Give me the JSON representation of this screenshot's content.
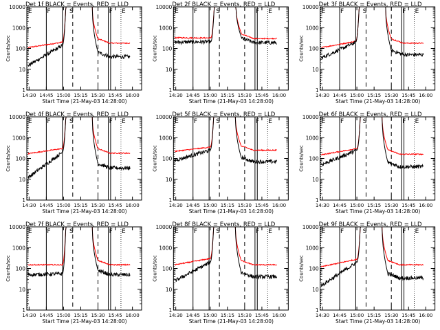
{
  "colors": {
    "events": "#000000",
    "lld": "#ff0000",
    "axes": "#000000",
    "background": "#ffffff"
  },
  "shared": {
    "xlabel": "Start Time (21-May-03 14:28:00)",
    "ylabel": "Counts/sec",
    "x_ticks": [
      "14:30",
      "14:45",
      "15:00",
      "15:15",
      "15:30",
      "15:45",
      "16:00"
    ],
    "x_tick_minutes": [
      2,
      17,
      32,
      47,
      62,
      77,
      92
    ],
    "x_range_minutes": [
      0,
      100
    ],
    "y_scale": "log",
    "y_ticks": [
      "1",
      "10",
      "100",
      "1000",
      "10000"
    ],
    "y_tick_values": [
      1,
      10,
      100,
      1000,
      10000
    ],
    "ylim": [
      1,
      10000
    ]
  },
  "chart_data": [
    {
      "type": "line",
      "title": "Det 1f BLACK = Events, RED = LLD",
      "ylabel": "Counts/sec",
      "xlabel": "Start Time (21-May-03 14:28:00)",
      "markers": [
        {
          "label": "E",
          "minute": 0.5
        },
        {
          "label": "F",
          "minute": 17
        },
        {
          "label": "S",
          "minute": 36.5
        },
        {
          "label": "F",
          "minute": 71
        },
        {
          "label": "E",
          "minute": 82
        }
      ],
      "lines_solid": [
        17,
        31,
        71,
        73
      ],
      "lines_dotted": [
        0.5,
        82
      ],
      "lines_dashed": [
        40,
        62
      ],
      "gap": [
        34,
        57
      ],
      "red": {
        "start": 110,
        "preEnd": 200,
        "peak": 10000,
        "post": 180
      },
      "black": {
        "start": 15,
        "preEnd": 140,
        "peak": 10000,
        "post": 40
      }
    },
    {
      "type": "line",
      "title": "Det 2f BLACK = Events, RED = LLD",
      "ylabel": "Counts/sec",
      "xlabel": "Start Time (21-May-03 14:28:00)",
      "markers": [
        {
          "label": "E",
          "minute": 0.5
        },
        {
          "label": "F",
          "minute": 17
        },
        {
          "label": "S",
          "minute": 36.5
        },
        {
          "label": "F",
          "minute": 71
        },
        {
          "label": "E",
          "minute": 82
        }
      ],
      "lines_solid": [
        17,
        31,
        71,
        73
      ],
      "lines_dotted": [
        0.5,
        82
      ],
      "lines_dashed": [
        40,
        62
      ],
      "gap": [
        35.5,
        54.5
      ],
      "red": {
        "start": 330,
        "preEnd": 320,
        "peak": 10000,
        "post": 300
      },
      "black": {
        "start": 200,
        "preEnd": 210,
        "peak": 10000,
        "post": 190
      }
    },
    {
      "type": "line",
      "title": "Det 3f BLACK = Events, RED = LLD",
      "ylabel": "Counts/sec",
      "xlabel": "Start Time (21-May-03 14:28:00)",
      "markers": [
        {
          "label": "E",
          "minute": 0.5
        },
        {
          "label": "F",
          "minute": 17
        },
        {
          "label": "S",
          "minute": 36.5
        },
        {
          "label": "F",
          "minute": 71
        },
        {
          "label": "E",
          "minute": 82
        }
      ],
      "lines_solid": [
        17,
        31,
        71,
        73
      ],
      "lines_dotted": [
        0.5,
        82
      ],
      "lines_dashed": [
        40,
        62
      ],
      "gap": [
        34,
        57
      ],
      "red": {
        "start": 110,
        "preEnd": 220,
        "peak": 10000,
        "post": 180
      },
      "black": {
        "start": 35,
        "preEnd": 200,
        "peak": 10000,
        "post": 50
      }
    },
    {
      "type": "line",
      "title": "Det 4f BLACK = Events, RED = LLD",
      "ylabel": "Counts/sec",
      "xlabel": "Start Time (21-May-03 14:28:00)",
      "markers": [
        {
          "label": "E",
          "minute": 0.5
        },
        {
          "label": "F",
          "minute": 17
        },
        {
          "label": "S",
          "minute": 36.5
        },
        {
          "label": "F",
          "minute": 71
        },
        {
          "label": "E",
          "minute": 82
        }
      ],
      "lines_solid": [
        17,
        31,
        71,
        73
      ],
      "lines_dotted": [
        0.5,
        82
      ],
      "lines_dashed": [
        40,
        62
      ],
      "gap": [
        34,
        57
      ],
      "red": {
        "start": 170,
        "preEnd": 300,
        "peak": 10000,
        "post": 180
      },
      "black": {
        "start": 12,
        "preEnd": 200,
        "peak": 10000,
        "post": 35
      }
    },
    {
      "type": "line",
      "title": "Det 5f BLACK = Events, RED = LLD",
      "ylabel": "Counts/sec",
      "xlabel": "Start Time (21-May-03 14:28:00)",
      "markers": [
        {
          "label": "E",
          "minute": 0.5
        },
        {
          "label": "F",
          "minute": 17
        },
        {
          "label": "S",
          "minute": 36.5
        },
        {
          "label": "F",
          "minute": 71
        },
        {
          "label": "E",
          "minute": 82
        }
      ],
      "lines_solid": [
        17,
        31,
        71,
        73
      ],
      "lines_dotted": [
        0.5,
        82
      ],
      "lines_dashed": [
        40,
        62
      ],
      "gap": [
        35,
        54
      ],
      "red": {
        "start": 220,
        "preEnd": 350,
        "peak": 10000,
        "post": 250
      },
      "black": {
        "start": 80,
        "preEnd": 250,
        "peak": 10000,
        "post": 70
      }
    },
    {
      "type": "line",
      "title": "Det 6f BLACK = Events, RED = LLD",
      "ylabel": "Counts/sec",
      "xlabel": "Start Time (21-May-03 14:28:00)",
      "markers": [
        {
          "label": "E",
          "minute": 0.5
        },
        {
          "label": "F",
          "minute": 17
        },
        {
          "label": "S",
          "minute": 36.5
        },
        {
          "label": "F",
          "minute": 71
        },
        {
          "label": "E",
          "minute": 82
        }
      ],
      "lines_solid": [
        17,
        31,
        71,
        73
      ],
      "lines_dotted": [
        0.5,
        82
      ],
      "lines_dashed": [
        40,
        62
      ],
      "gap": [
        35,
        54
      ],
      "red": {
        "start": 150,
        "preEnd": 300,
        "peak": 10000,
        "post": 160
      },
      "black": {
        "start": 50,
        "preEnd": 250,
        "peak": 10000,
        "post": 40
      }
    },
    {
      "type": "line",
      "title": "Det 7f BLACK = Events, RED = LLD",
      "ylabel": "Counts/sec",
      "xlabel": "Start Time (21-May-03 14:28:00)",
      "markers": [
        {
          "label": "E",
          "minute": 0.5
        },
        {
          "label": "F",
          "minute": 17
        },
        {
          "label": "S",
          "minute": 36.5
        },
        {
          "label": "F",
          "minute": 71
        },
        {
          "label": "E",
          "minute": 82
        }
      ],
      "lines_solid": [
        17,
        31,
        71,
        73
      ],
      "lines_dotted": [
        0.5,
        82
      ],
      "lines_dashed": [
        40,
        62
      ],
      "gap": [
        34,
        57
      ],
      "red": {
        "start": 150,
        "preEnd": 150,
        "peak": 10000,
        "post": 150
      },
      "black": {
        "start": 50,
        "preEnd": 55,
        "peak": 10000,
        "post": 50
      }
    },
    {
      "type": "line",
      "title": "Det 8f BLACK = Events, RED = LLD",
      "ylabel": "Counts/sec",
      "xlabel": "Start Time (21-May-03 14:28:00)",
      "markers": [
        {
          "label": "E",
          "minute": 0.5
        },
        {
          "label": "F",
          "minute": 17
        },
        {
          "label": "S",
          "minute": 36.5
        },
        {
          "label": "F",
          "minute": 71
        },
        {
          "label": "E",
          "minute": 82
        }
      ],
      "lines_solid": [
        17,
        31,
        71,
        73
      ],
      "lines_dotted": [
        0.5,
        82
      ],
      "lines_dashed": [
        40,
        62
      ],
      "gap": [
        35,
        54
      ],
      "red": {
        "start": 150,
        "preEnd": 300,
        "peak": 10000,
        "post": 150
      },
      "black": {
        "start": 25,
        "preEnd": 200,
        "peak": 10000,
        "post": 40
      }
    },
    {
      "type": "line",
      "title": "Det 9f BLACK = Events, RED = LLD",
      "ylabel": "Counts/sec",
      "xlabel": "Start Time (21-May-03 14:28:00)",
      "markers": [
        {
          "label": "E",
          "minute": 0.5
        },
        {
          "label": "F",
          "minute": 17
        },
        {
          "label": "S",
          "minute": 36.5
        },
        {
          "label": "F",
          "minute": 71
        },
        {
          "label": "E",
          "minute": 82
        }
      ],
      "lines_solid": [
        17,
        31,
        71,
        73
      ],
      "lines_dotted": [
        0.5,
        82
      ],
      "lines_dashed": [
        40,
        62
      ],
      "gap": [
        35,
        54
      ],
      "red": {
        "start": 120,
        "preEnd": 280,
        "peak": 10000,
        "post": 150
      },
      "black": {
        "start": 15,
        "preEnd": 200,
        "peak": 10000,
        "post": 35
      }
    }
  ]
}
